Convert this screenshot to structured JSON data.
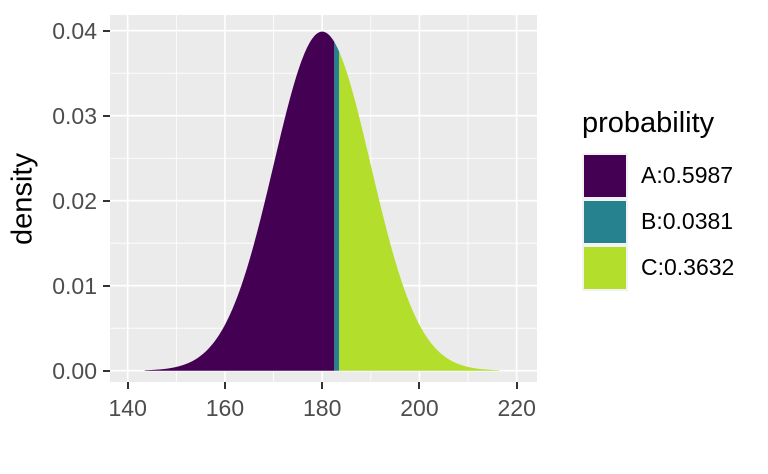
{
  "figure": {
    "background": "#FFFFFF"
  },
  "panel": {
    "background": "#EBEBEB",
    "grid_major_color": "#FFFFFF",
    "grid_minor_color": "#FFFFFF",
    "tick_mark_color": "#333333",
    "tick_label_color": "#4D4D4D"
  },
  "chart_data": {
    "type": "area",
    "title": "",
    "xlabel": "",
    "ylabel": "density",
    "xlim": [
      136.36,
      224.18
    ],
    "ylim": [
      -0.00133,
      0.04185
    ],
    "grid": true,
    "legend_position": "right",
    "x_ticks": {
      "values": [
        140,
        160,
        180,
        200,
        220
      ],
      "labels": [
        "140",
        "160",
        "180",
        "200",
        "220"
      ]
    },
    "y_ticks": {
      "values": [
        0,
        0.01,
        0.02,
        0.03,
        0.04
      ],
      "labels": [
        "0.00",
        "0.01",
        "0.02",
        "0.03",
        "0.04"
      ]
    },
    "x_minor": [
      150,
      170,
      190,
      210
    ],
    "y_minor": [
      0.005,
      0.015,
      0.025,
      0.035
    ],
    "distribution": {
      "type": "normal",
      "mean": 180,
      "sd": 10,
      "range": [
        143.5,
        216.5
      ],
      "peak_density": 0.0399
    },
    "regions": [
      {
        "name": "A",
        "from": 143.5,
        "to": 182.5,
        "color": "#440154",
        "probability": 0.5987
      },
      {
        "name": "B",
        "from": 182.5,
        "to": 183.5,
        "color": "#26828E",
        "probability": 0.0381
      },
      {
        "name": "C",
        "from": 183.5,
        "to": 216.5,
        "color": "#B4DE2C",
        "probability": 0.3632
      }
    ]
  },
  "legend": {
    "title": "probability",
    "key_background": "#F2F2F2",
    "items": [
      {
        "label": "A:0.5987",
        "color": "#440154"
      },
      {
        "label": "B:0.0381",
        "color": "#26828E"
      },
      {
        "label": "C:0.3632",
        "color": "#B4DE2C"
      }
    ]
  }
}
